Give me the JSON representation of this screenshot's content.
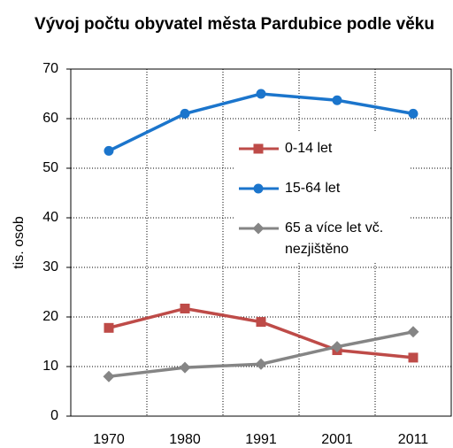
{
  "chart_data": {
    "type": "line",
    "title": "Vývoj počtu obyvatel města Pardubice podle věku",
    "y_label": "tis. osob",
    "categories": [
      "1970",
      "1980",
      "1991",
      "2001",
      "2011"
    ],
    "series": [
      {
        "name": "0-14 let",
        "color": "#be4b48",
        "marker": "square",
        "values": [
          17.8,
          21.7,
          19.0,
          13.3,
          11.8
        ]
      },
      {
        "name": "15-64 let",
        "color": "#1b75cc",
        "marker": "circle",
        "values": [
          53.5,
          61.0,
          65.0,
          63.7,
          61.0
        ]
      },
      {
        "name": "65 a více let vč. nezjištěno",
        "color": "#858585",
        "marker": "diamond",
        "values": [
          8.0,
          9.8,
          10.5,
          14.0,
          17.0
        ]
      }
    ],
    "ylim": [
      0,
      70
    ],
    "yticks": [
      0,
      10,
      20,
      30,
      40,
      50,
      60,
      70
    ],
    "grid": true
  }
}
